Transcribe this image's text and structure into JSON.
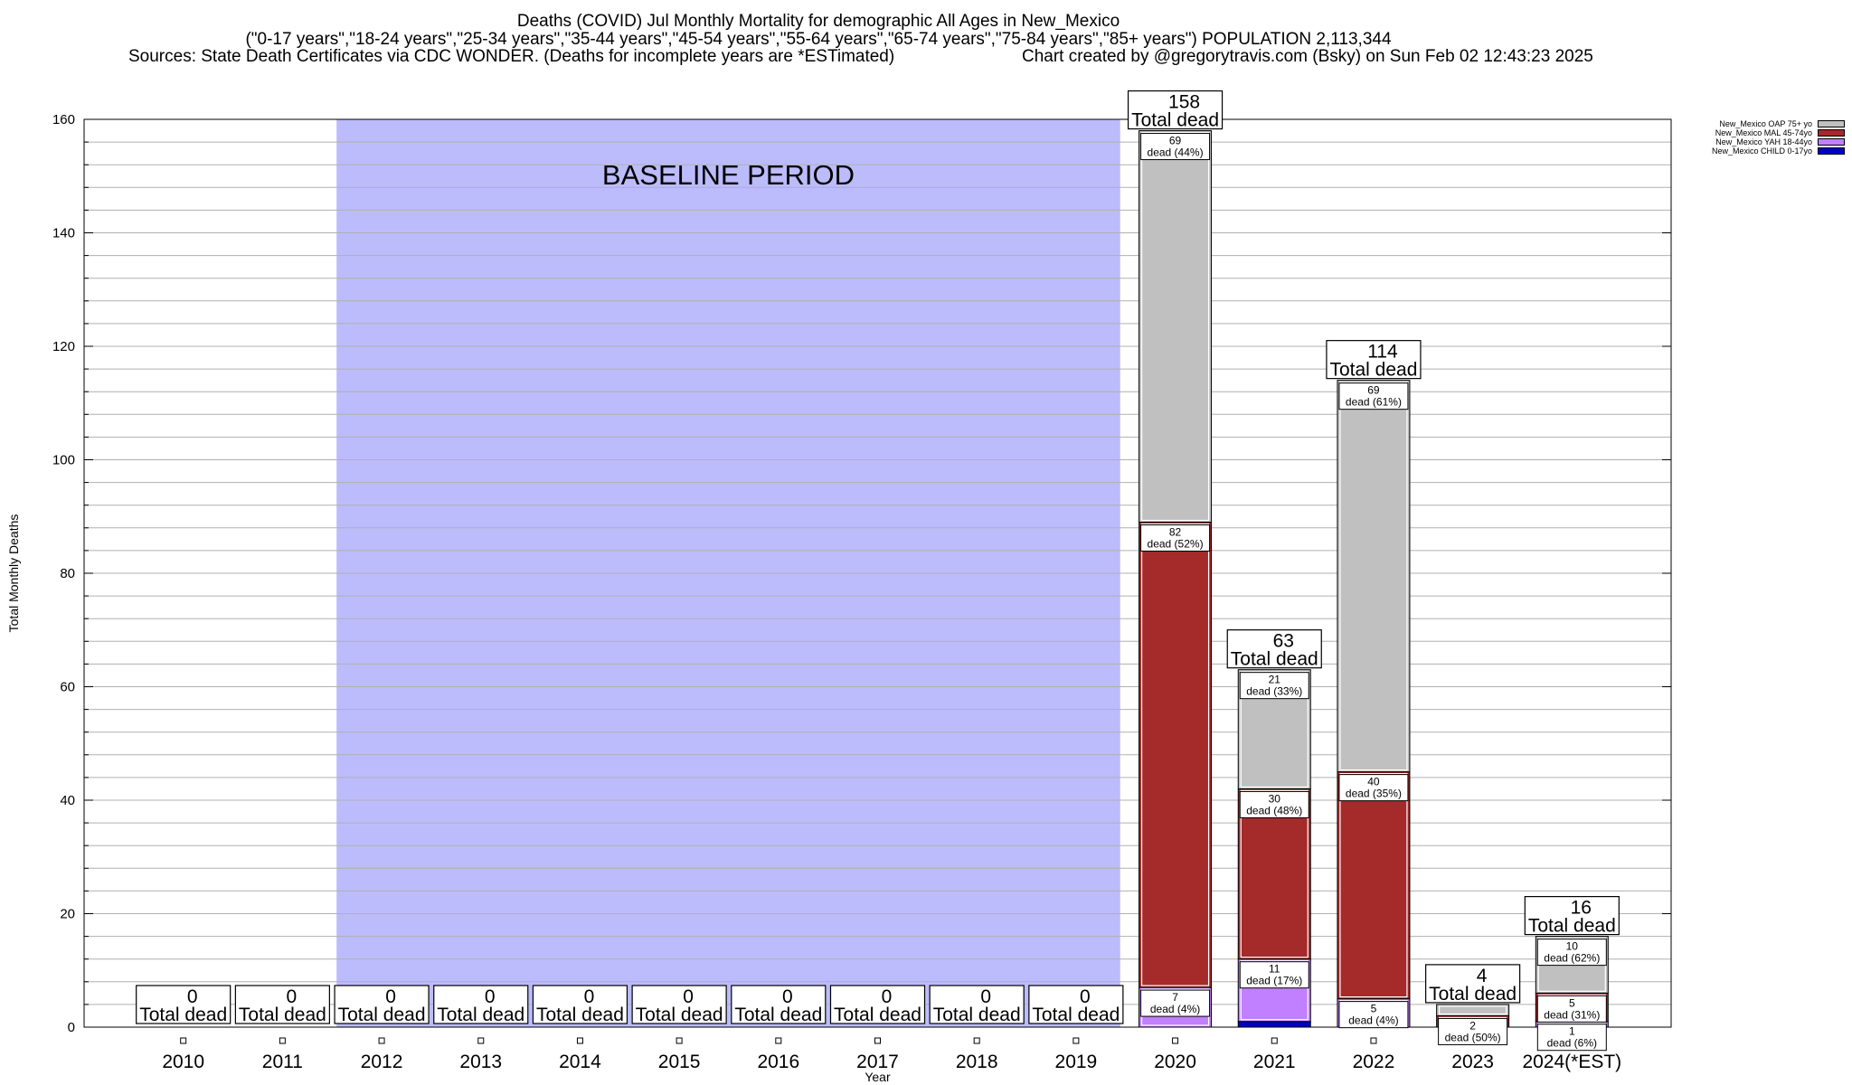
{
  "header": {
    "title": "Deaths (COVID) Jul Monthly Mortality for demographic All Ages in New_Mexico",
    "subtitle": "(\"0-17 years\",\"18-24 years\",\"25-34 years\",\"35-44 years\",\"45-54 years\",\"55-64 years\",\"65-74 years\",\"75-84 years\",\"85+ years\") POPULATION 2,113,344",
    "sources": "Sources: State Death Certificates via CDC WONDER. (Deaths for incomplete years are *ESTimated)",
    "credit": "Chart created by @gregorytravis.com (Bsky) on Sun Feb 02 12:43:23 2025"
  },
  "chart_data": {
    "type": "bar",
    "stacked": true,
    "xlabel": "Year",
    "ylabel": "Total Monthly Deaths",
    "ylim": [
      0,
      160
    ],
    "y_ticks": [
      0,
      20,
      40,
      60,
      80,
      100,
      120,
      140,
      160
    ],
    "grid": true,
    "legend_position": "top-right",
    "categories": [
      "2010",
      "2011",
      "2012",
      "2013",
      "2014",
      "2015",
      "2016",
      "2017",
      "2018",
      "2019",
      "2020",
      "2021",
      "2022",
      "2023",
      "2024(*EST)"
    ],
    "baseline_label": "BASELINE PERIOD",
    "baseline_range": [
      "2012",
      "2019"
    ],
    "baseline_color": "#bcbcfc",
    "total_word": "Total dead",
    "dead_word": "dead",
    "totals": [
      0,
      0,
      0,
      0,
      0,
      0,
      0,
      0,
      0,
      0,
      158,
      63,
      114,
      4,
      16
    ],
    "series": [
      {
        "name": "New_Mexico CHILD 0-17yo",
        "color": "#0000c8",
        "values": [
          0,
          0,
          0,
          0,
          0,
          0,
          0,
          0,
          0,
          0,
          0,
          1,
          0,
          0,
          0
        ],
        "labels": [
          null,
          null,
          null,
          null,
          null,
          null,
          null,
          null,
          null,
          null,
          null,
          null,
          null,
          null,
          null
        ]
      },
      {
        "name": "New_Mexico YAH 18-44yo",
        "color": "#c080ff",
        "values": [
          0,
          0,
          0,
          0,
          0,
          0,
          0,
          0,
          0,
          0,
          7,
          11,
          5,
          0,
          1
        ],
        "labels": [
          null,
          null,
          null,
          null,
          null,
          null,
          null,
          null,
          null,
          null,
          "(4%)",
          "(17%)",
          "(4%)",
          null,
          "(6%)"
        ]
      },
      {
        "name": "New_Mexico MAL 45-74yo",
        "color": "#a52a2a",
        "values": [
          0,
          0,
          0,
          0,
          0,
          0,
          0,
          0,
          0,
          0,
          82,
          30,
          40,
          2,
          5
        ],
        "labels": [
          null,
          null,
          null,
          null,
          null,
          null,
          null,
          null,
          null,
          null,
          "(52%)",
          "(48%)",
          "(35%)",
          "(50%)",
          "(31%)"
        ]
      },
      {
        "name": "New_Mexico OAP 75+ yo",
        "color": "#c0c0c0",
        "values": [
          0,
          0,
          0,
          0,
          0,
          0,
          0,
          0,
          0,
          0,
          69,
          21,
          69,
          2,
          10
        ],
        "labels": [
          null,
          null,
          null,
          null,
          null,
          null,
          null,
          null,
          null,
          null,
          "(44%)",
          "(33%)",
          "(61%)",
          null,
          "(62%)"
        ]
      }
    ]
  }
}
